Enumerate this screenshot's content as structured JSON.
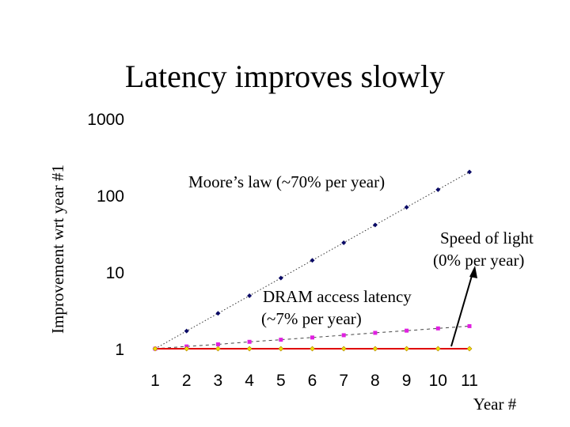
{
  "chart_data": {
    "type": "line",
    "title": "Latency improves slowly",
    "xlabel": "Year #",
    "ylabel": "Improvement wrt year #1",
    "yscale": "log",
    "ylim": [
      1,
      1000
    ],
    "xlim": [
      1,
      11
    ],
    "x": [
      1,
      2,
      3,
      4,
      5,
      6,
      7,
      8,
      9,
      10,
      11
    ],
    "x_ticks": [
      "1",
      "2",
      "3",
      "4",
      "5",
      "6",
      "7",
      "8",
      "9",
      "10",
      "11"
    ],
    "y_ticks": [
      {
        "value": 1,
        "label": "1"
      },
      {
        "value": 10,
        "label": "10"
      },
      {
        "value": 100,
        "label": "100"
      },
      {
        "value": 1000,
        "label": "1000"
      }
    ],
    "series": [
      {
        "name": "Moore's law (~70% per year)",
        "color": "#0a0a66",
        "marker": "diamond",
        "line": "dotted",
        "values": [
          1,
          1.7,
          2.89,
          4.91,
          8.35,
          14.2,
          24.1,
          41.0,
          69.8,
          118.6,
          201.6
        ]
      },
      {
        "name": "DRAM access latency (~7% per year)",
        "color": "#e020e0",
        "marker": "square",
        "line": "dashed",
        "values": [
          1,
          1.07,
          1.14,
          1.23,
          1.31,
          1.4,
          1.5,
          1.61,
          1.72,
          1.84,
          1.97
        ]
      },
      {
        "name": "Speed of light (0% per year)",
        "color": "#f0e000",
        "line_color": "#e00000",
        "marker": "diamond",
        "line": "solid",
        "values": [
          1,
          1,
          1,
          1,
          1,
          1,
          1,
          1,
          1,
          1,
          1
        ]
      }
    ],
    "annotations": {
      "moore": "Moore’s law (~70% per year)",
      "dram_line1": "DRAM access latency",
      "dram_line2": "(~7% per year)",
      "light_line1": "Speed of light",
      "light_line2": "(0% per year)"
    }
  }
}
